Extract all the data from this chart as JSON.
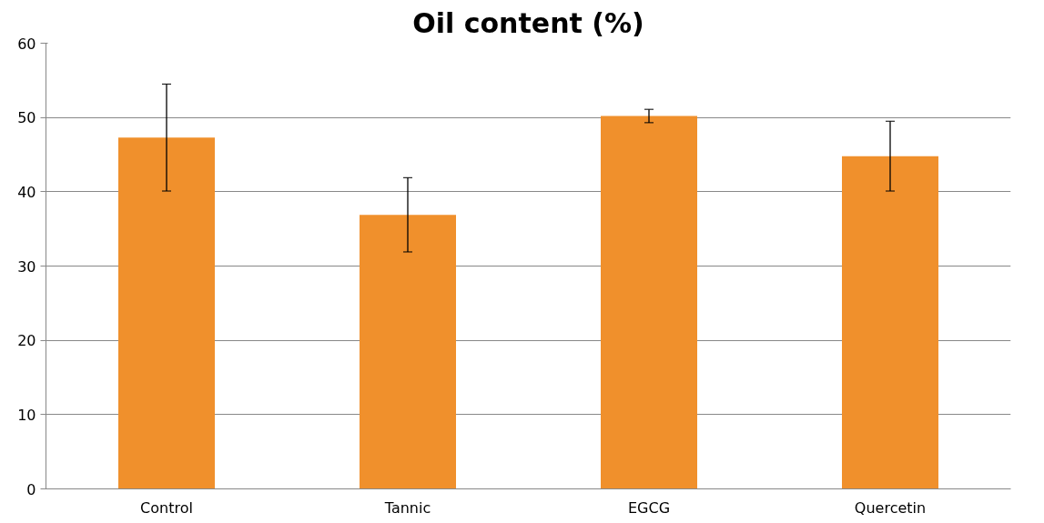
{
  "chart_data": {
    "type": "bar",
    "title": "Oil content (%)",
    "categories": [
      "Control",
      "Tannic",
      "EGCG",
      "Quercetin"
    ],
    "values": [
      47.3,
      36.9,
      50.2,
      44.8
    ],
    "errors": [
      7.2,
      5.0,
      0.9,
      4.7
    ],
    "color": "#f0902c",
    "ylim": [
      0,
      60
    ],
    "yticks": [
      0,
      10,
      20,
      30,
      40,
      50,
      60
    ],
    "grid": "y"
  }
}
